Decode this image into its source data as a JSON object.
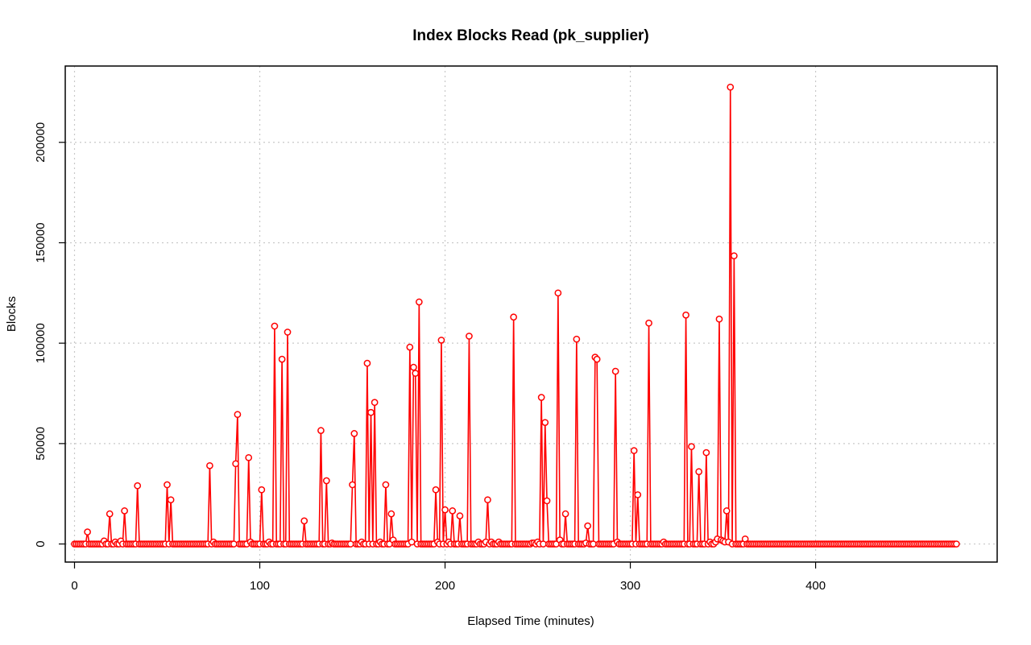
{
  "chart_data": {
    "type": "line",
    "title": "Index Blocks Read (pk_supplier)",
    "xlabel": "Elapsed Time (minutes)",
    "ylabel": "Blocks",
    "xlim": [
      -5,
      498
    ],
    "ylim": [
      -9000,
      238000
    ],
    "x_ticks": [
      0,
      100,
      200,
      300,
      400
    ],
    "y_ticks": [
      0,
      50000,
      100000,
      150000,
      200000
    ],
    "x_tick_labels": [
      "0",
      "100",
      "200",
      "300",
      "400"
    ],
    "y_tick_labels": [
      "0",
      "50000",
      "100000",
      "150000",
      "200000"
    ],
    "grid": true,
    "legend": "none",
    "line_style": "points and lines",
    "marker": "open-circle",
    "color": "#ff0000",
    "series": [
      {
        "x_start": 0,
        "x_end": 476,
        "x_step": 1,
        "baseline": 0,
        "peaks": [
          [
            7,
            6000
          ],
          [
            16,
            1500
          ],
          [
            19,
            15000
          ],
          [
            22,
            1000
          ],
          [
            25,
            1500
          ],
          [
            27,
            16500
          ],
          [
            34,
            29000
          ],
          [
            50,
            29500
          ],
          [
            52,
            22000
          ],
          [
            73,
            39000
          ],
          [
            75,
            1000
          ],
          [
            87,
            40000
          ],
          [
            88,
            64500
          ],
          [
            94,
            43000
          ],
          [
            95,
            1000
          ],
          [
            101,
            27000
          ],
          [
            105,
            1000
          ],
          [
            108,
            108500
          ],
          [
            112,
            92000
          ],
          [
            115,
            105500
          ],
          [
            124,
            11500
          ],
          [
            133,
            56500
          ],
          [
            136,
            31500
          ],
          [
            139,
            500
          ],
          [
            150,
            29500
          ],
          [
            151,
            55000
          ],
          [
            155,
            1000
          ],
          [
            158,
            90000
          ],
          [
            160,
            65500
          ],
          [
            162,
            70500
          ],
          [
            165,
            1000
          ],
          [
            168,
            29500
          ],
          [
            171,
            15000
          ],
          [
            172,
            2000
          ],
          [
            181,
            98000
          ],
          [
            182,
            1000
          ],
          [
            183,
            88000
          ],
          [
            184,
            85000
          ],
          [
            186,
            120500
          ],
          [
            195,
            27000
          ],
          [
            196,
            1000
          ],
          [
            198,
            101500
          ],
          [
            200,
            17000
          ],
          [
            202,
            1000
          ],
          [
            204,
            16500
          ],
          [
            208,
            14000
          ],
          [
            213,
            103500
          ],
          [
            218,
            1000
          ],
          [
            222,
            1000
          ],
          [
            223,
            22000
          ],
          [
            225,
            1000
          ],
          [
            229,
            1000
          ],
          [
            237,
            113000
          ],
          [
            247,
            500
          ],
          [
            248,
            500
          ],
          [
            250,
            1000
          ],
          [
            252,
            73000
          ],
          [
            254,
            60500
          ],
          [
            255,
            21500
          ],
          [
            261,
            125000
          ],
          [
            262,
            2000
          ],
          [
            265,
            15000
          ],
          [
            271,
            102000
          ],
          [
            276,
            500
          ],
          [
            277,
            9000
          ],
          [
            281,
            93000
          ],
          [
            282,
            92000
          ],
          [
            292,
            86000
          ],
          [
            293,
            1000
          ],
          [
            302,
            46500
          ],
          [
            304,
            24500
          ],
          [
            310,
            110000
          ],
          [
            318,
            1000
          ],
          [
            330,
            114000
          ],
          [
            333,
            48500
          ],
          [
            337,
            36000
          ],
          [
            341,
            45500
          ],
          [
            343,
            1000
          ],
          [
            346,
            1000
          ],
          [
            347,
            2500
          ],
          [
            348,
            112000
          ],
          [
            349,
            2000
          ],
          [
            350,
            1500
          ],
          [
            351,
            1000
          ],
          [
            352,
            16500
          ],
          [
            353,
            1000
          ],
          [
            354,
            227500
          ],
          [
            356,
            143500
          ],
          [
            362,
            2500
          ]
        ]
      }
    ]
  }
}
